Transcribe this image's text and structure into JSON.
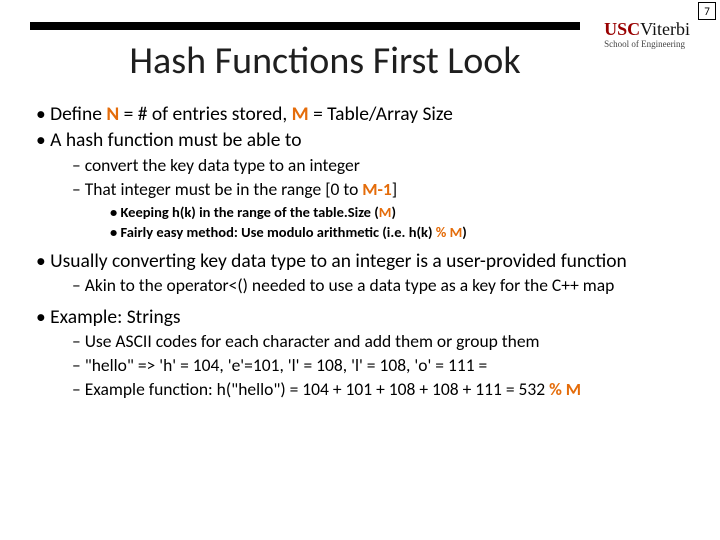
{
  "page_number": "7",
  "logo": {
    "usc": "USC",
    "viterbi": "Viterbi",
    "sub": "School of Engineering"
  },
  "title": "Hash Functions First Look",
  "bullets": {
    "b1_pre": "Define ",
    "b1_N": "N",
    "b1_mid": " = # of entries stored, ",
    "b1_M": "M",
    "b1_post": " = Table/Array Size",
    "b2": "A hash function must be able to",
    "b2a": "convert the key data type to an integer",
    "b2b_pre": "That integer must be in the range [0 to ",
    "b2b_hl": "M-1",
    "b2b_post": "]",
    "b2b1_pre": "Keeping h(k) in the range of the table.Size (",
    "b2b1_hl": "M",
    "b2b1_post": ")",
    "b2b2_pre": "Fairly easy method:  Use modulo arithmetic (i.e. h(k) ",
    "b2b2_hl": "% M",
    "b2b2_post": ")",
    "b3": "Usually converting key data type to an integer is a user-provided function",
    "b3a": "Akin to the operator<() needed to use a data type as a key for the C++ map",
    "b4": "Example: Strings",
    "b4a": "Use ASCII codes for each character and add them or group them",
    "b4b": "\"hello\" => 'h' = 104, 'e'=101, 'l' = 108, 'l' = 108, 'o' = 111 =",
    "b4c_pre": "Example function: h(\"hello\") = 104 + 101 + 108 + 108 + 111 = 532 ",
    "b4c_hl": "% M"
  },
  "colors": {
    "highlight": "#e46c0a",
    "header_bar": "#000000",
    "usc_red": "#990000"
  }
}
